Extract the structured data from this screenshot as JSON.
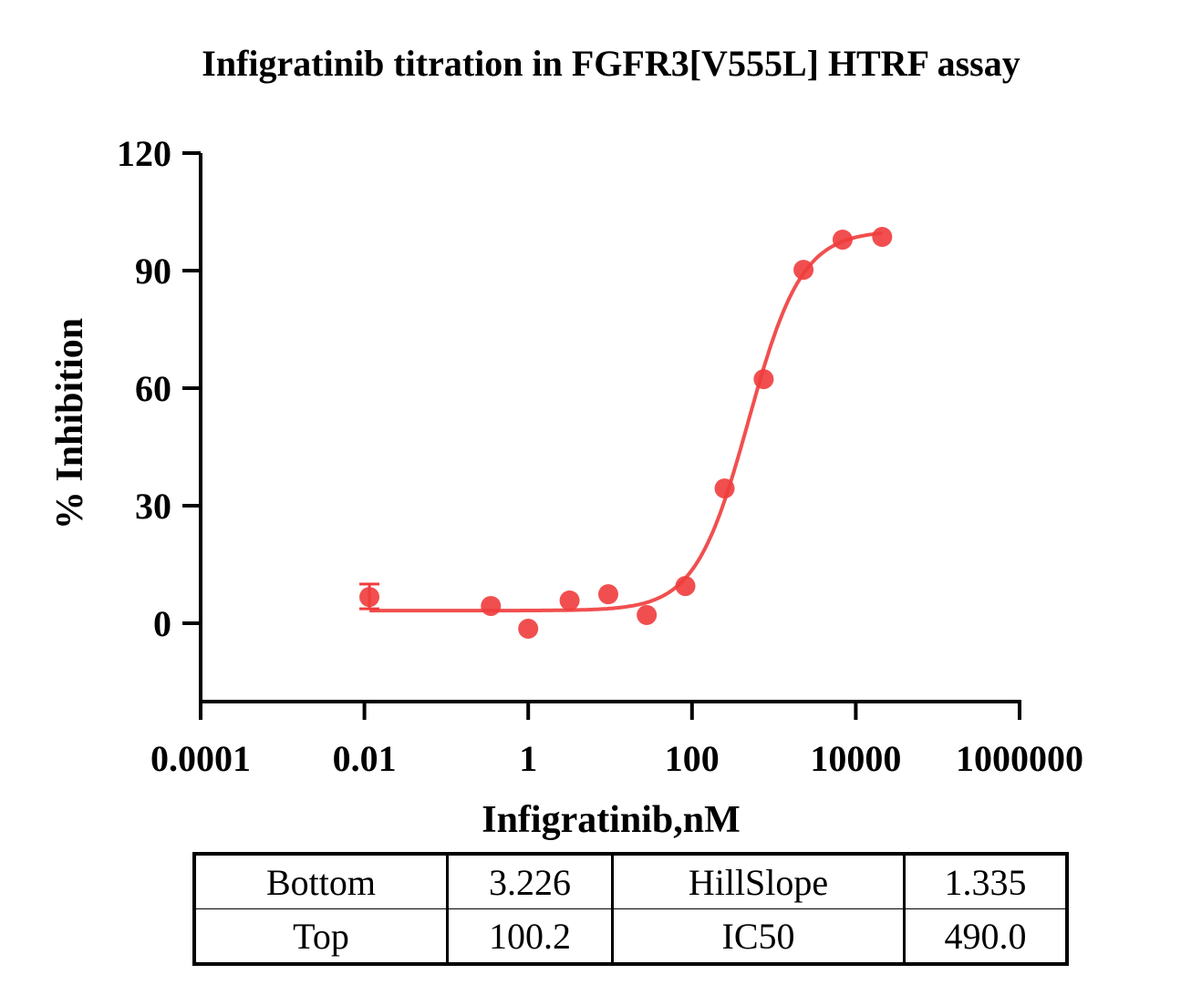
{
  "chart_data": {
    "type": "scatter",
    "title": "Infigratinib titration in FGFR3[V555L] HTRF assay",
    "xlabel": "Infigratinib,nM",
    "ylabel": "% Inhibition",
    "xscale": "log",
    "xlim": [
      0.0001,
      1000000
    ],
    "ylim": [
      -20,
      120
    ],
    "xticks": [
      0.0001,
      0.01,
      1,
      100,
      10000,
      1000000
    ],
    "xtick_labels": [
      "0.0001",
      "0.01",
      "1",
      "100",
      "10000",
      "1000000"
    ],
    "yticks": [
      0,
      30,
      60,
      90,
      120
    ],
    "ytick_labels": [
      "0",
      "30",
      "60",
      "90",
      "120"
    ],
    "grid": false,
    "color": "#f03c3c",
    "points": [
      {
        "x": 0.0115,
        "y": 6.7,
        "err_low": 3.7,
        "err_high": 10.0
      },
      {
        "x": 0.35,
        "y": 4.4
      },
      {
        "x": 1.0,
        "y": -1.4
      },
      {
        "x": 3.2,
        "y": 5.8
      },
      {
        "x": 9.5,
        "y": 7.4
      },
      {
        "x": 28,
        "y": 2.1
      },
      {
        "x": 83,
        "y": 9.5
      },
      {
        "x": 250,
        "y": 34.4
      },
      {
        "x": 750,
        "y": 62.3
      },
      {
        "x": 2300,
        "y": 90.2
      },
      {
        "x": 6900,
        "y": 97.9
      },
      {
        "x": 21000,
        "y": 98.6
      }
    ],
    "fit": {
      "model": "4PL",
      "bottom": 3.226,
      "top": 100.2,
      "hillslope": 1.335,
      "ic50": 490.0,
      "x_range": [
        0.0115,
        21000
      ]
    }
  },
  "table": {
    "rows": [
      [
        {
          "label": "Bottom"
        },
        {
          "label": "3.226"
        },
        {
          "label": "HillSlope"
        },
        {
          "label": "1.335"
        }
      ],
      [
        {
          "label": "Top"
        },
        {
          "label": "100.2"
        },
        {
          "label": "IC50"
        },
        {
          "label": "490.0"
        }
      ]
    ]
  }
}
